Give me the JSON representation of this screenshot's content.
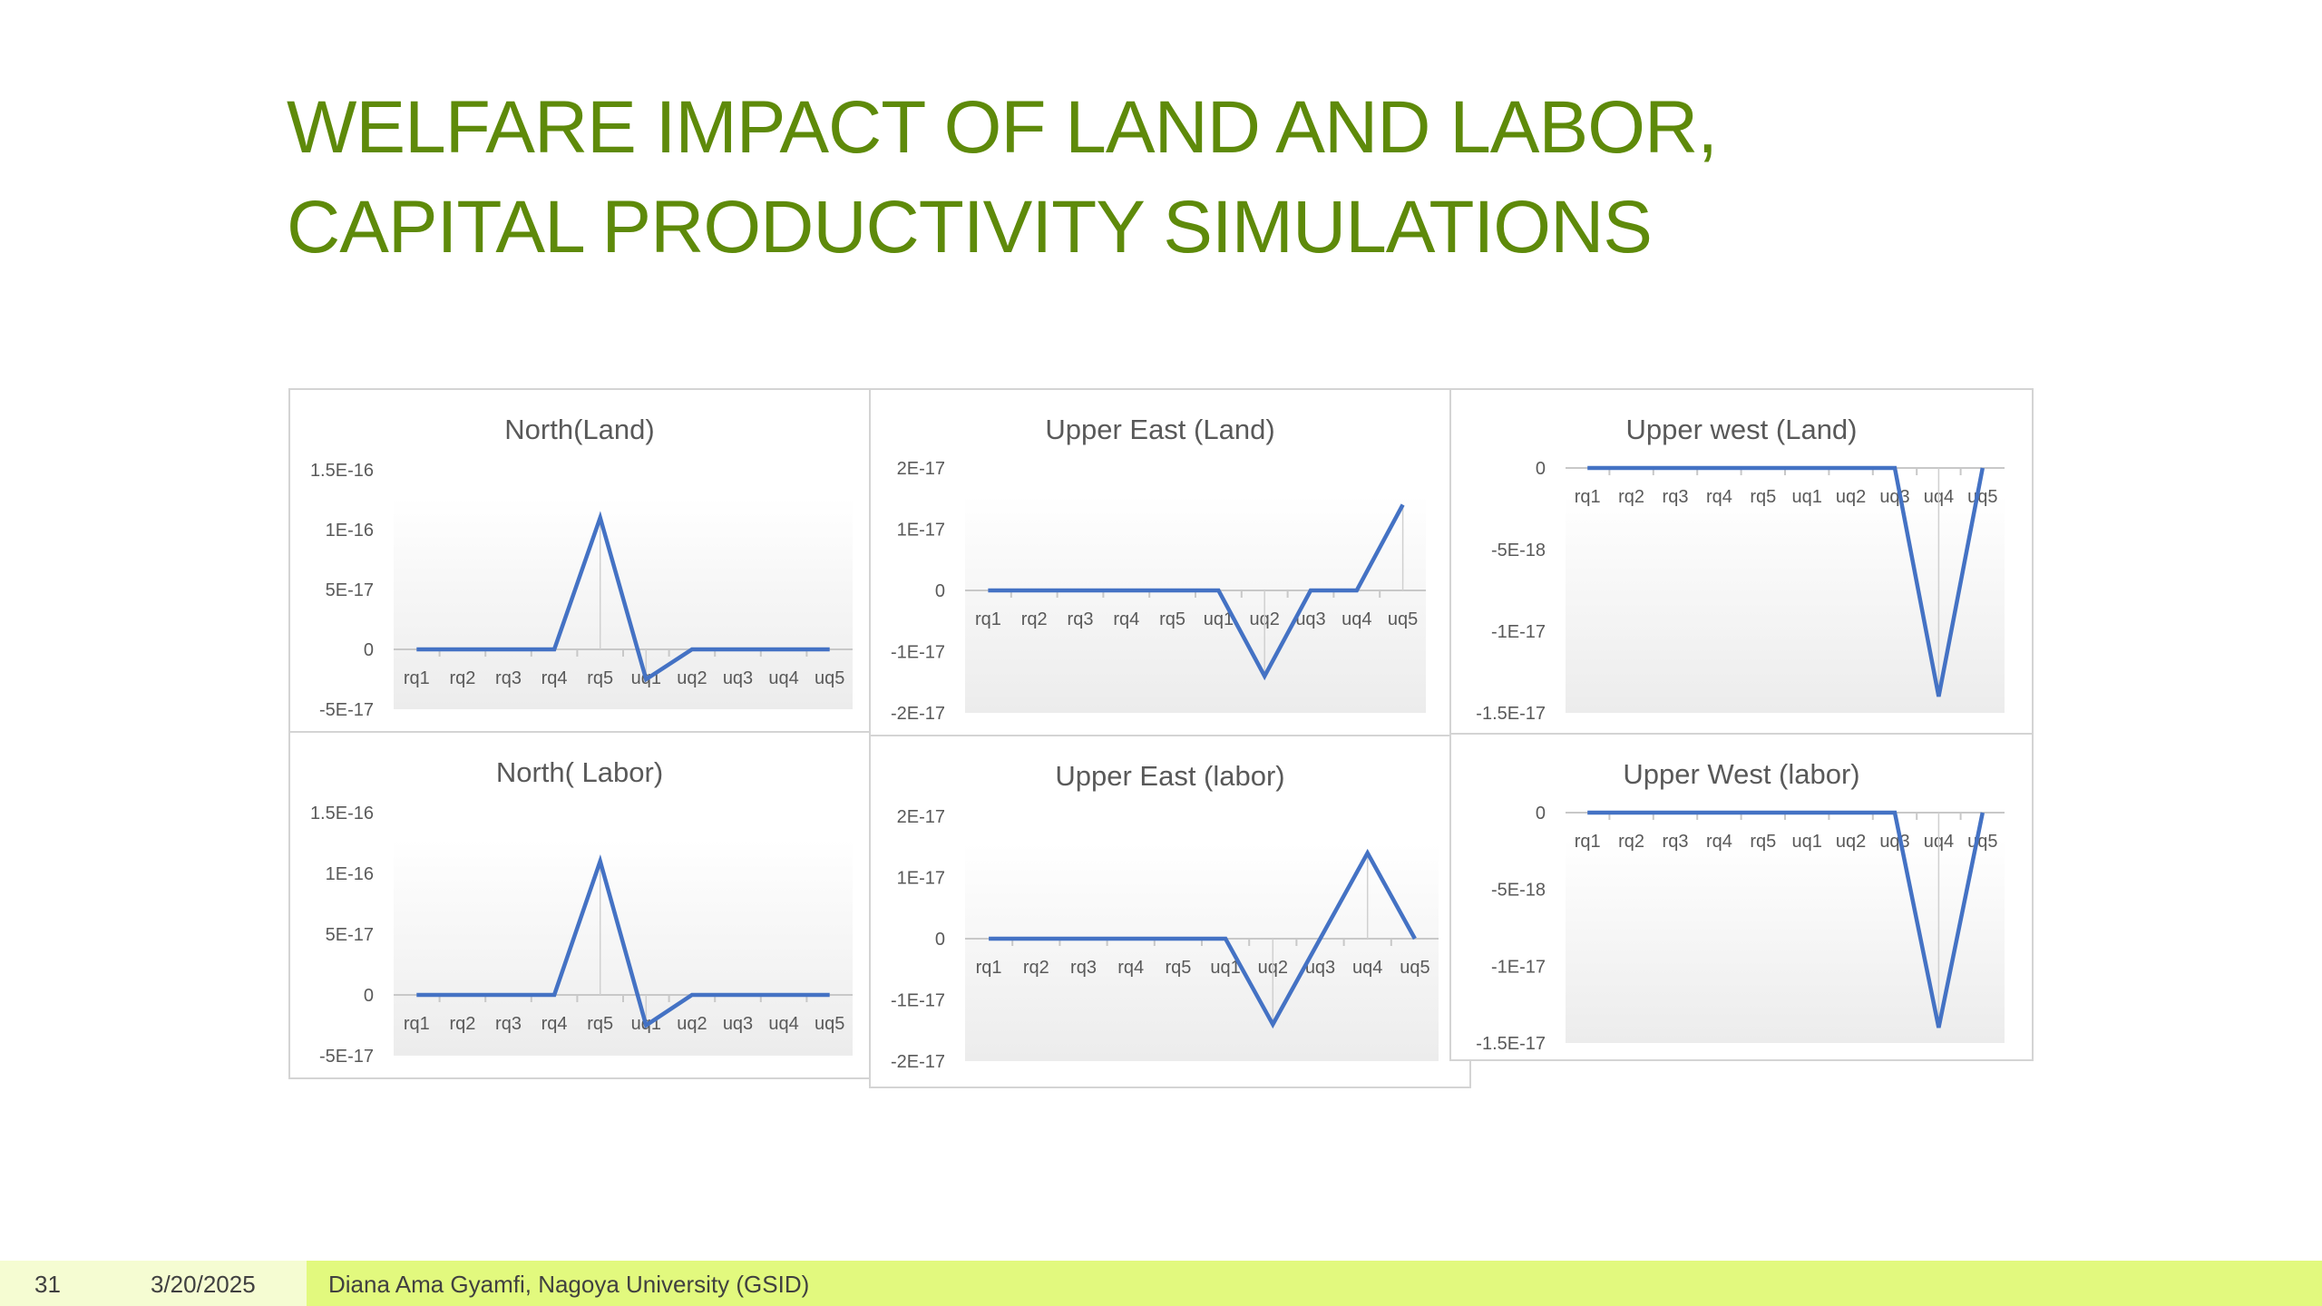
{
  "slide": {
    "title_line1": "WELFARE IMPACT OF LAND AND LABOR,",
    "title_line2": "CAPITAL PRODUCTIVITY SIMULATIONS"
  },
  "footer": {
    "page_number": "31",
    "date": "3/20/2025",
    "author": "Diana Ama Gyamfi, Nagoya University (GSID)"
  },
  "colors": {
    "title": "#5e8a0a",
    "series": "#4472c4",
    "footer_bar": "#e2f97e"
  },
  "chart_data": [
    {
      "type": "line",
      "title": "North(Land)",
      "categories": [
        "rq1",
        "rq2",
        "rq3",
        "rq4",
        "rq5",
        "uq1",
        "uq2",
        "uq3",
        "uq4",
        "uq5"
      ],
      "values": [
        0,
        0,
        0,
        0,
        1.1e-16,
        -2.5e-17,
        0,
        0,
        0,
        0
      ],
      "ylim": [
        -5e-17,
        1.5e-16
      ],
      "yticks": [
        -5e-17,
        0,
        5e-17,
        1e-16,
        1.5e-16
      ],
      "ytick_labels": [
        "-5E-17",
        "0",
        "5E-17",
        "1E-16",
        "1.5E-16"
      ]
    },
    {
      "type": "line",
      "title": "Upper East (Land)",
      "categories": [
        "rq1",
        "rq2",
        "rq3",
        "rq4",
        "rq5",
        "uq1",
        "uq2",
        "uq3",
        "uq4",
        "uq5"
      ],
      "values": [
        0,
        0,
        0,
        0,
        0,
        0,
        -1.4e-17,
        0,
        0,
        1.4e-17
      ],
      "ylim": [
        -2e-17,
        2e-17
      ],
      "yticks": [
        -2e-17,
        -1e-17,
        0,
        1e-17,
        2e-17
      ],
      "ytick_labels": [
        "-2E-17",
        "-1E-17",
        "0",
        "1E-17",
        "2E-17"
      ]
    },
    {
      "type": "line",
      "title": "Upper west (Land)",
      "categories": [
        "rq1",
        "rq2",
        "rq3",
        "rq4",
        "rq5",
        "uq1",
        "uq2",
        "uq3",
        "uq4",
        "uq5"
      ],
      "values": [
        0,
        0,
        0,
        0,
        0,
        0,
        0,
        0,
        -1.4e-17,
        0
      ],
      "ylim": [
        -1.5e-17,
        0
      ],
      "yticks": [
        -1.5e-17,
        -1e-17,
        -5e-18,
        0
      ],
      "ytick_labels": [
        "-1.5E-17",
        "-1E-17",
        "-5E-18",
        "0"
      ]
    },
    {
      "type": "line",
      "title": "North( Labor)",
      "categories": [
        "rq1",
        "rq2",
        "rq3",
        "rq4",
        "rq5",
        "uq1",
        "uq2",
        "uq3",
        "uq4",
        "uq5"
      ],
      "values": [
        0,
        0,
        0,
        0,
        1.1e-16,
        -2.5e-17,
        0,
        0,
        0,
        0
      ],
      "ylim": [
        -5e-17,
        1.5e-16
      ],
      "yticks": [
        -5e-17,
        0,
        5e-17,
        1e-16,
        1.5e-16
      ],
      "ytick_labels": [
        "-5E-17",
        "0",
        "5E-17",
        "1E-16",
        "1.5E-16"
      ]
    },
    {
      "type": "line",
      "title": "Upper East (labor)",
      "categories": [
        "rq1",
        "rq2",
        "rq3",
        "rq4",
        "rq5",
        "uq1",
        "uq2",
        "uq3",
        "uq4",
        "uq5"
      ],
      "values": [
        0,
        0,
        0,
        0,
        0,
        0,
        -1.4e-17,
        0,
        1.4e-17,
        0
      ],
      "ylim": [
        -2e-17,
        2e-17
      ],
      "yticks": [
        -2e-17,
        -1e-17,
        0,
        1e-17,
        2e-17
      ],
      "ytick_labels": [
        "-2E-17",
        "-1E-17",
        "0",
        "1E-17",
        "2E-17"
      ]
    },
    {
      "type": "line",
      "title": "Upper West (labor)",
      "categories": [
        "rq1",
        "rq2",
        "rq3",
        "rq4",
        "rq5",
        "uq1",
        "uq2",
        "uq3",
        "uq4",
        "uq5"
      ],
      "values": [
        0,
        0,
        0,
        0,
        0,
        0,
        0,
        0,
        -1.4e-17,
        0
      ],
      "ylim": [
        -1.5e-17,
        0
      ],
      "yticks": [
        -1.5e-17,
        -1e-17,
        -5e-18,
        0
      ],
      "ytick_labels": [
        "-1.5E-17",
        "-1E-17",
        "-5E-18",
        "0"
      ]
    }
  ]
}
